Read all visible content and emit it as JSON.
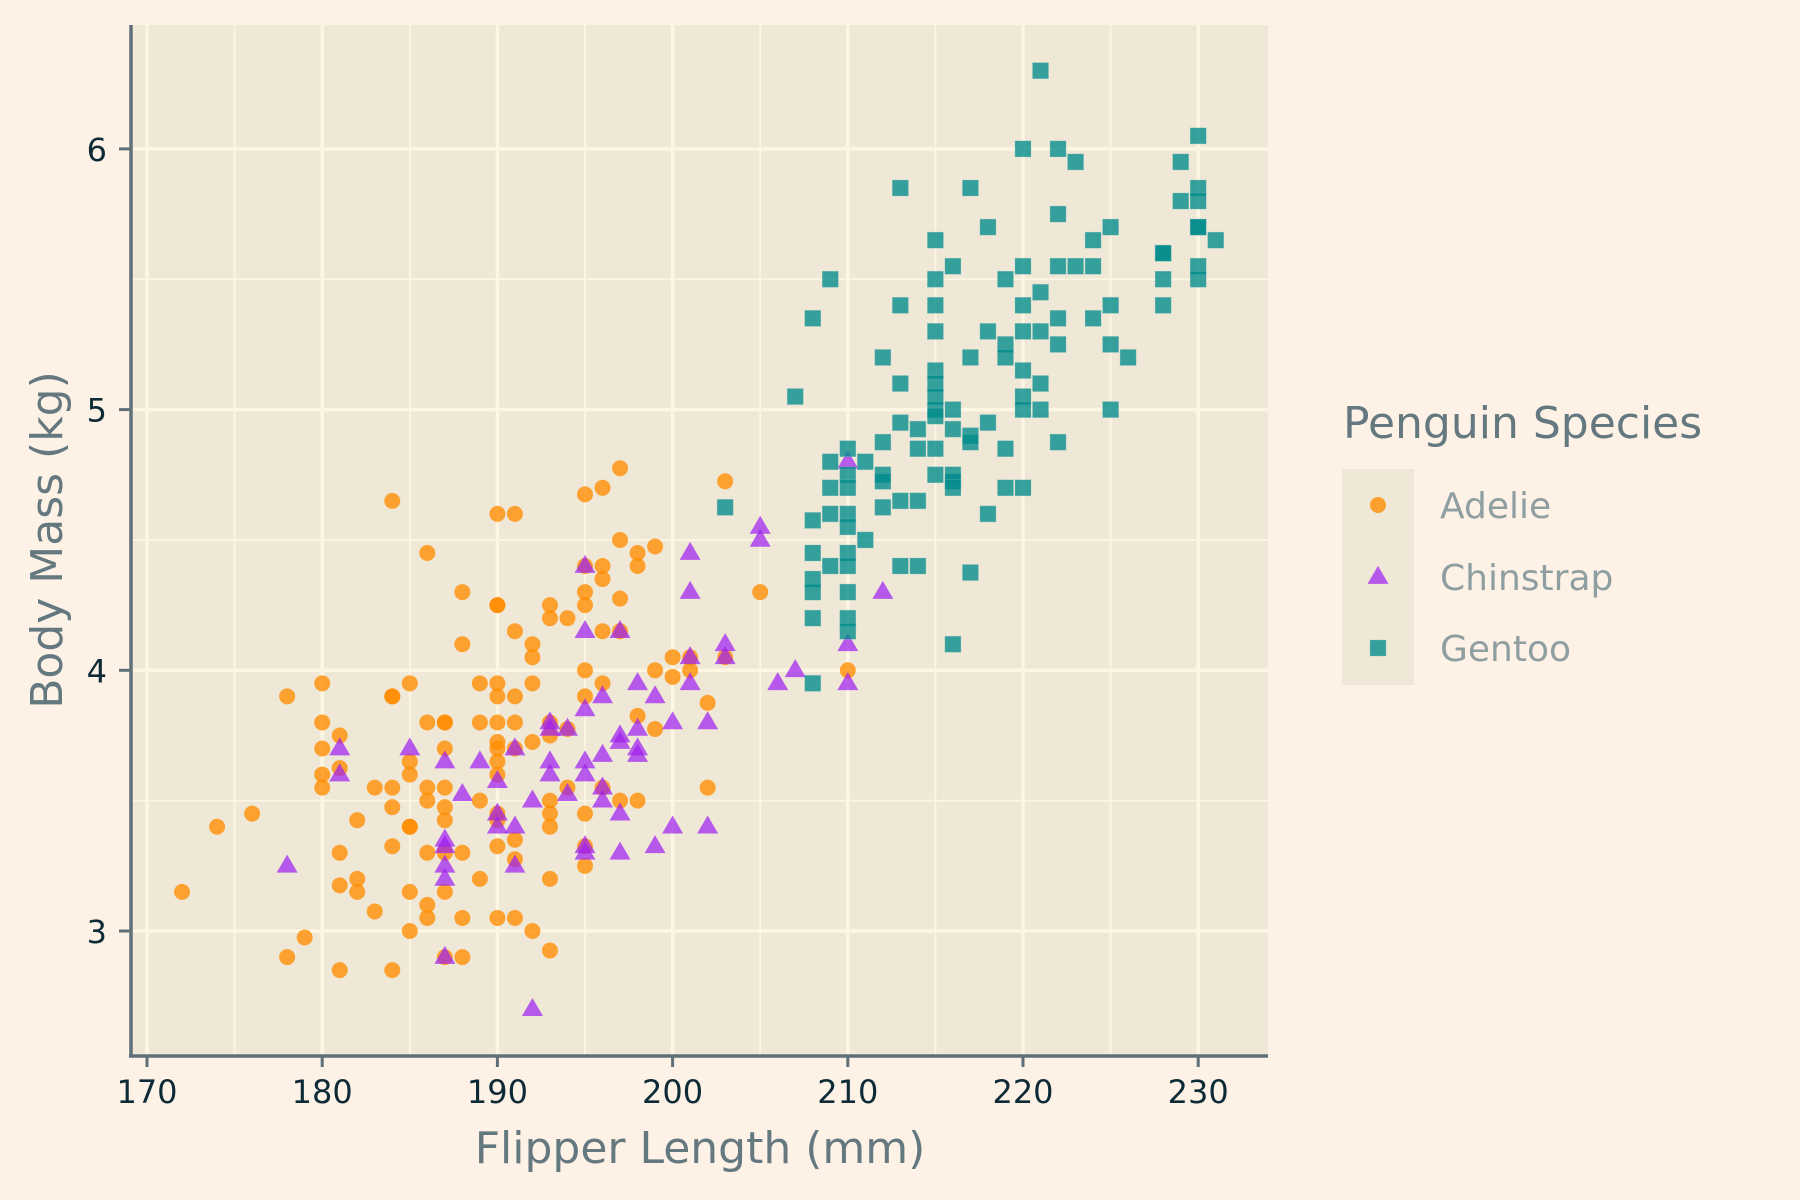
{
  "chart_data": {
    "type": "scatter",
    "title": "",
    "xlabel": "Flipper Length (mm)",
    "ylabel": "Body Mass (kg)",
    "xlim": [
      169.3,
      233.9
    ],
    "ylim": [
      2.52,
      6.48
    ],
    "xticks": [
      170,
      180,
      190,
      200,
      210,
      220,
      230
    ],
    "yticks": [
      3,
      4,
      5,
      6
    ],
    "grid": true,
    "legend": {
      "title": "Penguin Species",
      "position": "right"
    },
    "colors": {
      "background": "#fef1e6",
      "panel": "#efe8d7",
      "grid": "#fdf6e3",
      "axis": "#5f7078"
    },
    "series": [
      {
        "name": "Adelie",
        "marker": "circle",
        "color": "#ff8c00",
        "points": [
          [
            172,
            3.15
          ],
          [
            174,
            3.4
          ],
          [
            176,
            3.45
          ],
          [
            178,
            3.9
          ],
          [
            178,
            2.9
          ],
          [
            179,
            2.975
          ],
          [
            180,
            3.95
          ],
          [
            180,
            3.8
          ],
          [
            180,
            3.7
          ],
          [
            180,
            3.6
          ],
          [
            180,
            3.55
          ],
          [
            181,
            3.75
          ],
          [
            181,
            3.625
          ],
          [
            181,
            3.3
          ],
          [
            181,
            3.175
          ],
          [
            181,
            2.85
          ],
          [
            182,
            3.2
          ],
          [
            182,
            3.15
          ],
          [
            182,
            3.425
          ],
          [
            183,
            3.55
          ],
          [
            183,
            3.075
          ],
          [
            184,
            4.65
          ],
          [
            184,
            3.9
          ],
          [
            184,
            3.9
          ],
          [
            184,
            3.55
          ],
          [
            184,
            3.475
          ],
          [
            184,
            3.325
          ],
          [
            184,
            2.85
          ],
          [
            185,
            3.95
          ],
          [
            185,
            3.65
          ],
          [
            185,
            3.6
          ],
          [
            185,
            3.4
          ],
          [
            185,
            3.4
          ],
          [
            185,
            3.15
          ],
          [
            185,
            3.0
          ],
          [
            186,
            4.45
          ],
          [
            186,
            3.8
          ],
          [
            186,
            3.55
          ],
          [
            186,
            3.5
          ],
          [
            186,
            3.3
          ],
          [
            186,
            3.1
          ],
          [
            186,
            3.05
          ],
          [
            187,
            3.8
          ],
          [
            187,
            3.8
          ],
          [
            187,
            3.7
          ],
          [
            187,
            3.55
          ],
          [
            187,
            3.475
          ],
          [
            187,
            3.425
          ],
          [
            187,
            3.3
          ],
          [
            187,
            3.15
          ],
          [
            187,
            2.9
          ],
          [
            188,
            4.3
          ],
          [
            188,
            4.1
          ],
          [
            188,
            3.3
          ],
          [
            188,
            3.05
          ],
          [
            188,
            2.9
          ],
          [
            189,
            3.95
          ],
          [
            189,
            3.8
          ],
          [
            189,
            3.5
          ],
          [
            189,
            3.2
          ],
          [
            190,
            4.6
          ],
          [
            190,
            4.25
          ],
          [
            190,
            4.25
          ],
          [
            190,
            3.95
          ],
          [
            190,
            3.9
          ],
          [
            190,
            3.8
          ],
          [
            190,
            3.725
          ],
          [
            190,
            3.7
          ],
          [
            190,
            3.65
          ],
          [
            190,
            3.6
          ],
          [
            190,
            3.45
          ],
          [
            190,
            3.425
          ],
          [
            190,
            3.325
          ],
          [
            190,
            3.05
          ],
          [
            191,
            4.6
          ],
          [
            191,
            4.15
          ],
          [
            191,
            3.9
          ],
          [
            191,
            3.8
          ],
          [
            191,
            3.7
          ],
          [
            191,
            3.35
          ],
          [
            191,
            3.275
          ],
          [
            191,
            3.05
          ],
          [
            192,
            4.1
          ],
          [
            192,
            4.05
          ],
          [
            192,
            3.95
          ],
          [
            192,
            3.725
          ],
          [
            192,
            3.0
          ],
          [
            193,
            4.25
          ],
          [
            193,
            4.2
          ],
          [
            193,
            3.8
          ],
          [
            193,
            3.75
          ],
          [
            193,
            3.5
          ],
          [
            193,
            3.45
          ],
          [
            193,
            3.4
          ],
          [
            193,
            3.2
          ],
          [
            193,
            2.925
          ],
          [
            194,
            4.2
          ],
          [
            194,
            3.775
          ],
          [
            194,
            3.55
          ],
          [
            195,
            4.675
          ],
          [
            195,
            4.4
          ],
          [
            195,
            4.3
          ],
          [
            195,
            4.25
          ],
          [
            195,
            4.0
          ],
          [
            195,
            3.9
          ],
          [
            195,
            3.45
          ],
          [
            195,
            3.325
          ],
          [
            195,
            3.25
          ],
          [
            196,
            4.7
          ],
          [
            196,
            4.4
          ],
          [
            196,
            4.35
          ],
          [
            196,
            4.15
          ],
          [
            196,
            3.95
          ],
          [
            196,
            3.55
          ],
          [
            197,
            4.775
          ],
          [
            197,
            4.5
          ],
          [
            197,
            4.275
          ],
          [
            197,
            4.15
          ],
          [
            197,
            3.5
          ],
          [
            198,
            4.45
          ],
          [
            198,
            4.4
          ],
          [
            198,
            3.825
          ],
          [
            198,
            3.5
          ],
          [
            199,
            4.475
          ],
          [
            199,
            4.0
          ],
          [
            199,
            3.775
          ],
          [
            200,
            4.05
          ],
          [
            200,
            3.975
          ],
          [
            201,
            4.05
          ],
          [
            201,
            4.0
          ],
          [
            202,
            3.875
          ],
          [
            202,
            3.55
          ],
          [
            203,
            4.725
          ],
          [
            203,
            4.05
          ],
          [
            205,
            4.3
          ],
          [
            210,
            4.0
          ]
        ]
      },
      {
        "name": "Chinstrap",
        "marker": "triangle",
        "color": "#a020f0",
        "points": [
          [
            178,
            3.25
          ],
          [
            181,
            3.7
          ],
          [
            181,
            3.6
          ],
          [
            185,
            3.7
          ],
          [
            187,
            3.65
          ],
          [
            187,
            3.35
          ],
          [
            187,
            3.325
          ],
          [
            187,
            3.25
          ],
          [
            187,
            3.2
          ],
          [
            187,
            2.9
          ],
          [
            188,
            3.525
          ],
          [
            189,
            3.65
          ],
          [
            190,
            3.575
          ],
          [
            190,
            3.45
          ],
          [
            190,
            3.4
          ],
          [
            191,
            3.7
          ],
          [
            191,
            3.4
          ],
          [
            191,
            3.25
          ],
          [
            192,
            3.5
          ],
          [
            192,
            2.7
          ],
          [
            193,
            3.8
          ],
          [
            193,
            3.775
          ],
          [
            193,
            3.65
          ],
          [
            193,
            3.6
          ],
          [
            194,
            3.775
          ],
          [
            194,
            3.525
          ],
          [
            195,
            4.4
          ],
          [
            195,
            4.15
          ],
          [
            195,
            3.85
          ],
          [
            195,
            3.65
          ],
          [
            195,
            3.6
          ],
          [
            195,
            3.325
          ],
          [
            195,
            3.3
          ],
          [
            196,
            3.9
          ],
          [
            196,
            3.675
          ],
          [
            196,
            3.55
          ],
          [
            196,
            3.5
          ],
          [
            197,
            4.15
          ],
          [
            197,
            3.75
          ],
          [
            197,
            3.725
          ],
          [
            197,
            3.45
          ],
          [
            197,
            3.3
          ],
          [
            198,
            3.95
          ],
          [
            198,
            3.775
          ],
          [
            198,
            3.7
          ],
          [
            198,
            3.675
          ],
          [
            199,
            3.9
          ],
          [
            199,
            3.325
          ],
          [
            200,
            3.8
          ],
          [
            200,
            3.4
          ],
          [
            201,
            4.45
          ],
          [
            201,
            4.3
          ],
          [
            201,
            4.05
          ],
          [
            201,
            3.95
          ],
          [
            202,
            3.8
          ],
          [
            202,
            3.4
          ],
          [
            203,
            4.1
          ],
          [
            203,
            4.05
          ],
          [
            205,
            4.55
          ],
          [
            205,
            4.5
          ],
          [
            206,
            3.95
          ],
          [
            207,
            4.0
          ],
          [
            210,
            4.8
          ],
          [
            210,
            4.1
          ],
          [
            210,
            3.95
          ],
          [
            212,
            4.3
          ]
        ]
      },
      {
        "name": "Gentoo",
        "marker": "square",
        "color": "#008b8b",
        "points": [
          [
            203,
            4.625
          ],
          [
            207,
            5.05
          ],
          [
            208,
            5.35
          ],
          [
            208,
            4.575
          ],
          [
            208,
            4.45
          ],
          [
            208,
            4.35
          ],
          [
            208,
            4.3
          ],
          [
            208,
            4.2
          ],
          [
            208,
            3.95
          ],
          [
            209,
            5.5
          ],
          [
            209,
            4.8
          ],
          [
            209,
            4.7
          ],
          [
            209,
            4.6
          ],
          [
            209,
            4.4
          ],
          [
            210,
            4.85
          ],
          [
            210,
            4.75
          ],
          [
            210,
            4.7
          ],
          [
            210,
            4.6
          ],
          [
            210,
            4.55
          ],
          [
            210,
            4.45
          ],
          [
            210,
            4.4
          ],
          [
            210,
            4.3
          ],
          [
            210,
            4.2
          ],
          [
            210,
            4.15
          ],
          [
            211,
            4.8
          ],
          [
            211,
            4.5
          ],
          [
            212,
            5.2
          ],
          [
            212,
            4.875
          ],
          [
            212,
            4.75
          ],
          [
            212,
            4.725
          ],
          [
            212,
            4.625
          ],
          [
            213,
            5.85
          ],
          [
            213,
            5.4
          ],
          [
            213,
            5.1
          ],
          [
            213,
            4.95
          ],
          [
            213,
            4.65
          ],
          [
            213,
            4.4
          ],
          [
            214,
            4.925
          ],
          [
            214,
            4.85
          ],
          [
            214,
            4.65
          ],
          [
            214,
            4.4
          ],
          [
            215,
            5.65
          ],
          [
            215,
            5.5
          ],
          [
            215,
            5.4
          ],
          [
            215,
            5.3
          ],
          [
            215,
            5.15
          ],
          [
            215,
            5.1
          ],
          [
            215,
            5.05
          ],
          [
            215,
            5.0
          ],
          [
            215,
            4.975
          ],
          [
            215,
            4.85
          ],
          [
            215,
            4.75
          ],
          [
            216,
            5.55
          ],
          [
            216,
            5.0
          ],
          [
            216,
            4.925
          ],
          [
            216,
            4.75
          ],
          [
            216,
            4.725
          ],
          [
            216,
            4.7
          ],
          [
            216,
            4.1
          ],
          [
            217,
            5.85
          ],
          [
            217,
            5.2
          ],
          [
            217,
            4.9
          ],
          [
            217,
            4.875
          ],
          [
            217,
            4.375
          ],
          [
            218,
            5.7
          ],
          [
            218,
            5.3
          ],
          [
            218,
            4.95
          ],
          [
            218,
            4.6
          ],
          [
            219,
            5.5
          ],
          [
            219,
            5.25
          ],
          [
            219,
            5.2
          ],
          [
            219,
            4.85
          ],
          [
            219,
            4.7
          ],
          [
            220,
            6.0
          ],
          [
            220,
            5.55
          ],
          [
            220,
            5.4
          ],
          [
            220,
            5.3
          ],
          [
            220,
            5.15
          ],
          [
            220,
            5.05
          ],
          [
            220,
            5.0
          ],
          [
            220,
            4.7
          ],
          [
            221,
            6.3
          ],
          [
            221,
            5.45
          ],
          [
            221,
            5.3
          ],
          [
            221,
            5.1
          ],
          [
            221,
            5.0
          ],
          [
            222,
            6.0
          ],
          [
            222,
            5.75
          ],
          [
            222,
            5.55
          ],
          [
            222,
            5.35
          ],
          [
            222,
            5.25
          ],
          [
            222,
            4.875
          ],
          [
            223,
            5.95
          ],
          [
            223,
            5.55
          ],
          [
            224,
            5.65
          ],
          [
            224,
            5.55
          ],
          [
            224,
            5.35
          ],
          [
            225,
            5.7
          ],
          [
            225,
            5.4
          ],
          [
            225,
            5.25
          ],
          [
            225,
            5.0
          ],
          [
            226,
            5.2
          ],
          [
            228,
            5.6
          ],
          [
            228,
            5.6
          ],
          [
            228,
            5.5
          ],
          [
            228,
            5.4
          ],
          [
            229,
            5.95
          ],
          [
            229,
            5.8
          ],
          [
            230,
            6.05
          ],
          [
            230,
            5.85
          ],
          [
            230,
            5.8
          ],
          [
            230,
            5.7
          ],
          [
            230,
            5.7
          ],
          [
            230,
            5.55
          ],
          [
            230,
            5.5
          ],
          [
            231,
            5.65
          ]
        ]
      }
    ]
  }
}
